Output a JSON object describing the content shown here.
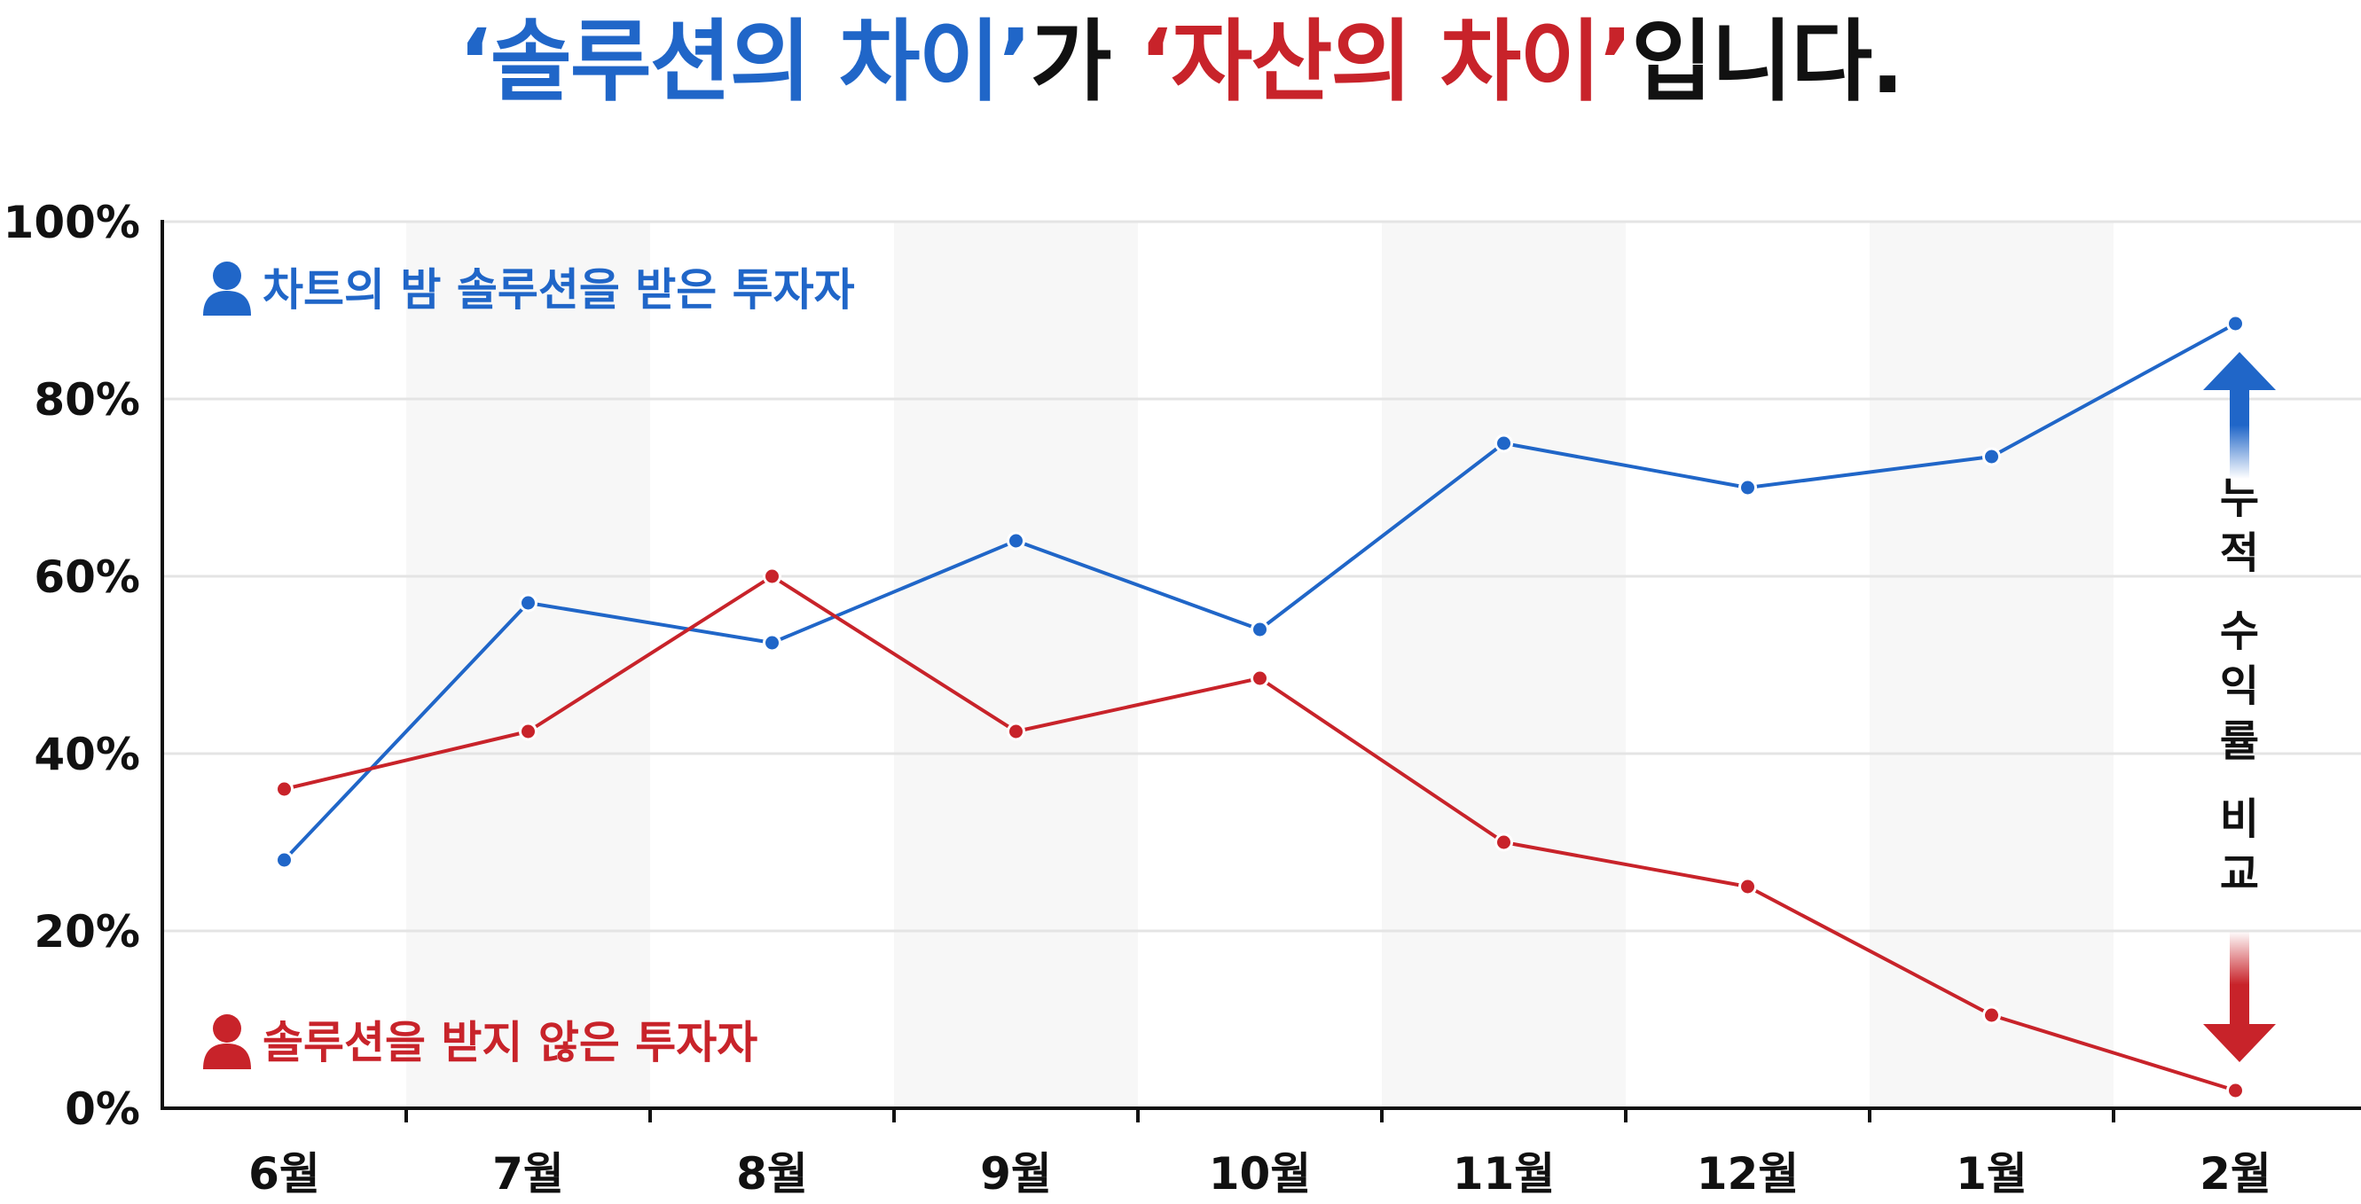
{
  "title": {
    "part1": "‘솔루션의 차이’",
    "part2": "가 ",
    "part3": "‘자산의 차이’",
    "part4": "입니다."
  },
  "colors": {
    "blue": "#2066c8",
    "red": "#c8232a",
    "band": "#f7f7f7",
    "grid": "#e4e4e4",
    "axis": "#111111"
  },
  "side_label": [
    "누",
    "적",
    "수",
    "익",
    "률",
    "비",
    "교"
  ],
  "chart_data": {
    "type": "line",
    "x": [
      "6월",
      "7월",
      "8월",
      "9월",
      "10월",
      "11월",
      "12월",
      "1월",
      "2월"
    ],
    "ylim": [
      0,
      100
    ],
    "yticks": [
      "0%",
      "20%",
      "40%",
      "60%",
      "80%",
      "100%"
    ],
    "xlabel": "",
    "ylabel": "",
    "grid": true,
    "legend_placement": "left",
    "series": [
      {
        "name": "차트의 밤 솔루션을 받은 투자자",
        "color": "#2066c8",
        "values": [
          28,
          57,
          52.5,
          64,
          54,
          75,
          70,
          73.5,
          88.5
        ]
      },
      {
        "name": "솔루션을 받지 않은 투자자",
        "color": "#c8232a",
        "values": [
          36,
          42.5,
          60,
          42.5,
          48.5,
          30,
          25,
          10.5,
          2
        ]
      }
    ]
  }
}
